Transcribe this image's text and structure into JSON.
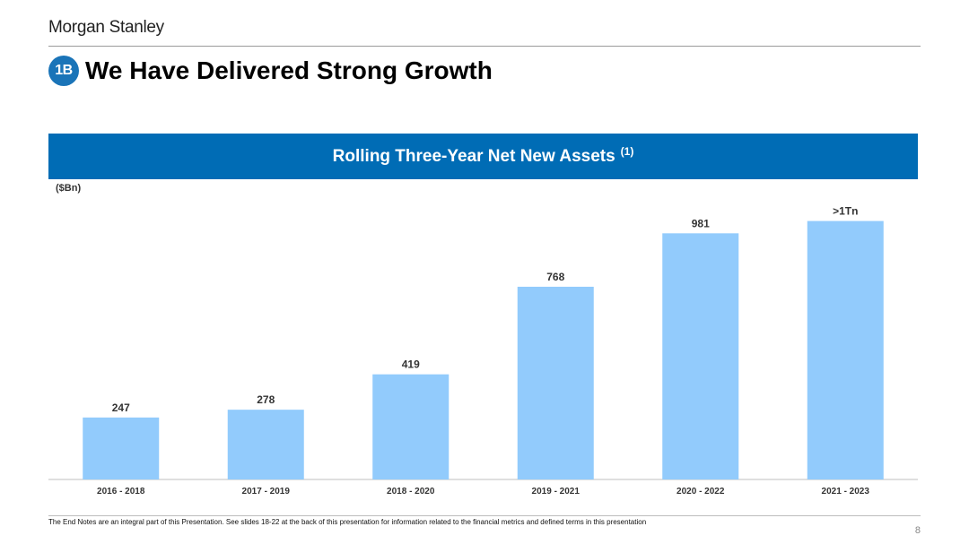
{
  "header": {
    "logo": "Morgan Stanley",
    "badge": "1B",
    "title": "We Have Delivered Strong Growth"
  },
  "banner": {
    "title": "Rolling Three-Year Net New Assets",
    "superscript": "(1)"
  },
  "units_label": "($Bn)",
  "chart_data": {
    "type": "bar",
    "categories": [
      "2016 - 2018",
      "2017 - 2019",
      "2018 - 2020",
      "2019 - 2021",
      "2020 - 2022",
      "2021 - 2023"
    ],
    "values": [
      247,
      278,
      419,
      768,
      981,
      1030
    ],
    "data_labels": [
      "247",
      "278",
      "419",
      "768",
      "981",
      ">1Tn"
    ],
    "ylabel": "($Bn)",
    "ylim": [
      0,
      1100
    ],
    "grid": false,
    "bar_color": "#92cbfc",
    "axis_color": "#bfbfbf"
  },
  "footer": {
    "note": "The End Notes are an integral part of this Presentation. See slides 18-22 at the back of this presentation for information related to the financial metrics and defined terms in this presentation",
    "page": "8"
  }
}
